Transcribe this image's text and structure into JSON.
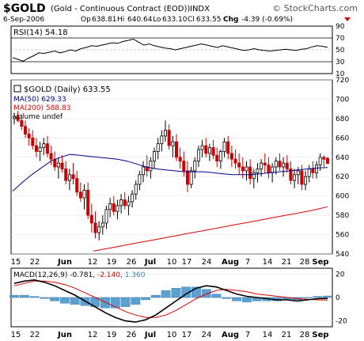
{
  "header": {
    "symbol": "$GOLD",
    "description": "(Gold - Continuous Contract (EOD))",
    "exchange": "INDX",
    "watermark": "© StockCharts.com",
    "date": "6-Sep-2006",
    "open_label": "Op",
    "open": "638.81",
    "high_label": "Hi",
    "high": "640.64",
    "low_label": "Lo",
    "low": "633.10",
    "close_label": "Cl",
    "close": "633.55",
    "change_label": "Chg",
    "change": "-4.39 (-0.69%)"
  },
  "colors": {
    "up": "#000000",
    "down": "#cc0000",
    "ma50": "#000088",
    "ma200": "#dd0000",
    "macd_line": "#000000",
    "signal_line": "#dd0000",
    "histogram": "#5aa0d0",
    "rsi_line": "#000000"
  },
  "chart_data": [
    {
      "type": "line",
      "panel": "rsi",
      "legend": "RSI(14) 54.18",
      "ylim": [
        10,
        90
      ],
      "yticks": [
        90,
        70,
        50,
        30,
        10
      ],
      "reference_lines": [
        70,
        30
      ],
      "x": [
        "Jun 12",
        "Jun 13",
        "Jun 14",
        "Jun 15",
        "Jun 16",
        "Jun 19",
        "Jun 20",
        "Jun 21",
        "Jun 22",
        "Jun 23",
        "Jun 26",
        "Jun 27",
        "Jun 28",
        "Jun 29",
        "Jun 30",
        "Jul 3",
        "Jul 5",
        "Jul 6",
        "Jul 7",
        "Jul 10",
        "Jul 11",
        "Jul 12",
        "Jul 13",
        "Jul 14",
        "Jul 17",
        "Jul 18",
        "Jul 19",
        "Jul 20",
        "Jul 21",
        "Jul 24",
        "Jul 25",
        "Jul 26",
        "Jul 27",
        "Jul 28",
        "Jul 31",
        "Aug 1",
        "Aug 2",
        "Aug 3",
        "Aug 4",
        "Aug 7",
        "Aug 8",
        "Aug 9",
        "Aug 10",
        "Aug 11",
        "Aug 14",
        "Aug 15",
        "Aug 16",
        "Aug 17",
        "Aug 18",
        "Aug 21",
        "Aug 22",
        "Aug 23",
        "Aug 24",
        "Aug 25",
        "Aug 28",
        "Aug 29",
        "Aug 30",
        "Aug 31",
        "Sep 1",
        "Sep 5",
        "Sep 6"
      ],
      "values": [
        37,
        34,
        31,
        36,
        40,
        45,
        44,
        46,
        48,
        45,
        47,
        50,
        48,
        52,
        54,
        57,
        56,
        58,
        60,
        62,
        61,
        64,
        66,
        68,
        63,
        58,
        60,
        57,
        55,
        53,
        52,
        50,
        52,
        54,
        56,
        58,
        60,
        58,
        56,
        54,
        57,
        55,
        53,
        51,
        49,
        50,
        52,
        50,
        49,
        48,
        49,
        50,
        51,
        50,
        49,
        51,
        52,
        55,
        57,
        56,
        54.18
      ]
    },
    {
      "type": "candlestick",
      "panel": "price",
      "legend": [
        "$GOLD (Daily) 633.55",
        "MA(50) 629.33",
        "MA(200) 588.83",
        "Volume undef"
      ],
      "ylim": [
        540,
        720
      ],
      "yticks": [
        720,
        700,
        680,
        660,
        640,
        620,
        600,
        580,
        560,
        540
      ],
      "x_tick_labels": [
        "15",
        "22",
        "Jun",
        "12",
        "19",
        "26",
        "Jul",
        "10",
        "17",
        "24",
        "Aug",
        "7",
        "14",
        "21",
        "28",
        "Sep"
      ],
      "ohlc_open_high_low_close": [
        [
          680,
          686,
          674,
          682
        ],
        [
          682,
          688,
          676,
          678
        ],
        [
          678,
          684,
          668,
          672
        ],
        [
          672,
          678,
          660,
          664
        ],
        [
          664,
          670,
          652,
          660
        ],
        [
          660,
          668,
          648,
          652
        ],
        [
          652,
          660,
          640,
          646
        ],
        [
          646,
          656,
          636,
          650
        ],
        [
          650,
          660,
          642,
          654
        ],
        [
          654,
          662,
          640,
          644
        ],
        [
          644,
          652,
          632,
          638
        ],
        [
          638,
          646,
          626,
          630
        ],
        [
          630,
          640,
          618,
          634
        ],
        [
          634,
          642,
          624,
          628
        ],
        [
          628,
          636,
          612,
          616
        ],
        [
          616,
          628,
          606,
          622
        ],
        [
          622,
          634,
          612,
          618
        ],
        [
          618,
          626,
          600,
          604
        ],
        [
          604,
          614,
          594,
          598
        ],
        [
          598,
          612,
          586,
          606
        ],
        [
          606,
          614,
          576,
          580
        ],
        [
          580,
          592,
          562,
          572
        ],
        [
          572,
          584,
          556,
          562
        ],
        [
          562,
          574,
          554,
          568
        ],
        [
          568,
          580,
          560,
          572
        ],
        [
          572,
          590,
          566,
          586
        ],
        [
          586,
          598,
          578,
          592
        ],
        [
          592,
          600,
          580,
          584
        ],
        [
          584,
          596,
          576,
          590
        ],
        [
          590,
          602,
          582,
          596
        ],
        [
          596,
          604,
          586,
          590
        ],
        [
          590,
          600,
          580,
          594
        ],
        [
          594,
          606,
          588,
          602
        ],
        [
          602,
          616,
          596,
          612
        ],
        [
          612,
          626,
          606,
          622
        ],
        [
          622,
          636,
          614,
          630
        ],
        [
          630,
          642,
          620,
          626
        ],
        [
          626,
          640,
          618,
          636
        ],
        [
          636,
          650,
          628,
          646
        ],
        [
          646,
          660,
          638,
          654
        ],
        [
          654,
          668,
          646,
          662
        ],
        [
          662,
          678,
          656,
          668
        ],
        [
          668,
          674,
          648,
          652
        ],
        [
          652,
          662,
          640,
          656
        ],
        [
          656,
          664,
          636,
          640
        ],
        [
          640,
          650,
          628,
          636
        ],
        [
          636,
          646,
          620,
          626
        ],
        [
          626,
          636,
          604,
          612
        ],
        [
          612,
          630,
          608,
          626
        ],
        [
          626,
          640,
          618,
          636
        ],
        [
          636,
          652,
          630,
          648
        ],
        [
          648,
          658,
          640,
          652
        ],
        [
          652,
          660,
          640,
          644
        ],
        [
          644,
          654,
          636,
          650
        ],
        [
          650,
          658,
          638,
          642
        ],
        [
          642,
          650,
          630,
          636
        ],
        [
          636,
          648,
          628,
          646
        ],
        [
          646,
          660,
          640,
          656
        ],
        [
          656,
          662,
          638,
          644
        ],
        [
          644,
          652,
          630,
          638
        ],
        [
          638,
          648,
          628,
          634
        ],
        [
          634,
          644,
          622,
          630
        ],
        [
          630,
          640,
          618,
          626
        ],
        [
          626,
          636,
          616,
          630
        ],
        [
          630,
          638,
          612,
          618
        ],
        [
          618,
          628,
          608,
          624
        ],
        [
          624,
          634,
          614,
          628
        ],
        [
          628,
          638,
          620,
          634
        ],
        [
          634,
          644,
          624,
          632
        ],
        [
          632,
          640,
          618,
          624
        ],
        [
          624,
          634,
          614,
          630
        ],
        [
          630,
          640,
          622,
          636
        ],
        [
          636,
          644,
          626,
          630
        ],
        [
          630,
          640,
          620,
          634
        ],
        [
          634,
          642,
          624,
          628
        ],
        [
          628,
          636,
          612,
          616
        ],
        [
          616,
          628,
          608,
          622
        ],
        [
          622,
          630,
          612,
          626
        ],
        [
          626,
          632,
          606,
          612
        ],
        [
          612,
          626,
          606,
          620
        ],
        [
          620,
          632,
          614,
          628
        ],
        [
          628,
          636,
          618,
          624
        ],
        [
          624,
          636,
          618,
          632
        ],
        [
          632,
          644,
          626,
          640
        ],
        [
          640,
          642,
          630,
          638
        ],
        [
          638.81,
          640.64,
          633.1,
          633.55
        ]
      ],
      "ma50": [
        605,
        614,
        622,
        629,
        636,
        640,
        643,
        642,
        641,
        640,
        639,
        638,
        636,
        633,
        630,
        628,
        627,
        626,
        625,
        625,
        625,
        624,
        623,
        622,
        622,
        622,
        623,
        624,
        625,
        626,
        627,
        628,
        629,
        629.33
      ],
      "ma200": [
        543,
        546,
        549,
        552,
        555,
        558,
        561,
        564,
        567,
        570,
        573,
        576,
        579,
        582,
        585,
        588.83
      ]
    },
    {
      "type": "line",
      "panel": "macd",
      "legend": "MACD(12,26,9) -0.781, -2.140, 1.360",
      "ylim": [
        -25,
        25
      ],
      "yticks": [
        20,
        0,
        -20
      ],
      "x_tick_labels": [
        "15",
        "22",
        "Jun",
        "12",
        "19",
        "26",
        "Jul",
        "10",
        "17",
        "24",
        "Aug",
        "7",
        "14",
        "21",
        "28",
        "Sep"
      ],
      "series": [
        {
          "name": "MACD(12,26,9)",
          "values": [
            12,
            14,
            15,
            13,
            10,
            6,
            2,
            -3,
            -8,
            -13,
            -17,
            -20,
            -21,
            -19,
            -15,
            -9,
            -3,
            3,
            8,
            10,
            9,
            6,
            3,
            1,
            0,
            -1,
            -2,
            -2,
            -3,
            -2,
            -1,
            -0.781
          ]
        },
        {
          "name": "Signal",
          "values": [
            10,
            12,
            14,
            14,
            13,
            11,
            8,
            4,
            0,
            -4,
            -8,
            -12,
            -15,
            -17,
            -17,
            -15,
            -11,
            -6,
            -1,
            3,
            6,
            7,
            6,
            5,
            3,
            2,
            1,
            0,
            -1,
            -1.5,
            -2,
            -2.14
          ]
        },
        {
          "name": "Histogram",
          "values": [
            2,
            2,
            1,
            -1,
            -3,
            -5,
            -6,
            -7,
            -8,
            -9,
            -9,
            -8,
            -6,
            -2,
            2,
            6,
            8,
            9,
            9,
            7,
            3,
            -1,
            -3,
            -4,
            -3,
            -3,
            -3,
            -2,
            -2,
            -0.5,
            1,
            1.36
          ]
        }
      ]
    }
  ]
}
